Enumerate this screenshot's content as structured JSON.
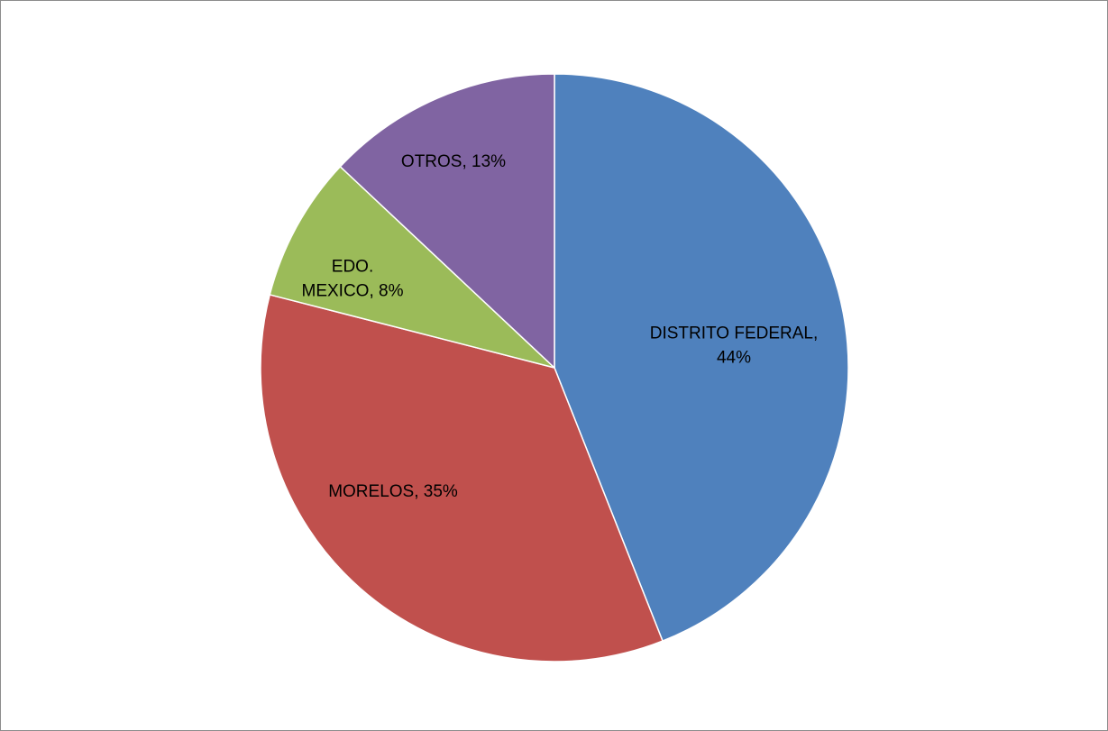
{
  "chart_data": {
    "type": "pie",
    "title": "",
    "slices": [
      {
        "name": "DISTRITO FEDERAL",
        "value": 44,
        "label_lines": [
          "DISTRITO FEDERAL,",
          "44%"
        ],
        "color": "#4F81BD"
      },
      {
        "name": "MORELOS",
        "value": 35,
        "label_lines": [
          "MORELOS, 35%"
        ],
        "color": "#C0504D"
      },
      {
        "name": "EDO. MEXICO",
        "value": 8,
        "label_lines": [
          "EDO.",
          "MEXICO, 8%"
        ],
        "color": "#9BBB59"
      },
      {
        "name": "OTROS",
        "value": 13,
        "label_lines": [
          "OTROS, 13%"
        ],
        "color": "#8064A2"
      }
    ],
    "start_angle_deg": 0,
    "direction": "clockwise",
    "legend": "none",
    "data_labels": "inside"
  }
}
